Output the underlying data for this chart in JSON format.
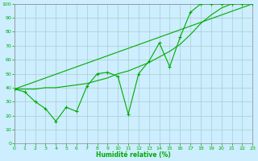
{
  "xlabel": "Humidité relative (%)",
  "background_color": "#cceeff",
  "grid_color": "#aacccc",
  "line_color": "#00aa00",
  "x_ticks": [
    0,
    1,
    2,
    3,
    4,
    5,
    6,
    7,
    8,
    9,
    10,
    11,
    12,
    13,
    14,
    15,
    16,
    17,
    18,
    19,
    20,
    21,
    22,
    23
  ],
  "ylim": [
    0,
    100
  ],
  "xlim": [
    0,
    23
  ],
  "yticks": [
    0,
    10,
    20,
    30,
    40,
    50,
    60,
    70,
    80,
    90,
    100
  ],
  "series1_x": [
    0,
    1,
    2,
    3,
    4,
    5,
    6,
    7,
    8,
    9,
    10,
    11,
    12,
    13,
    14,
    15,
    16,
    17,
    18,
    19,
    20,
    21,
    22,
    23
  ],
  "series1_y": [
    39,
    37,
    30,
    25,
    16,
    26,
    23,
    41,
    50,
    51,
    48,
    21,
    50,
    59,
    72,
    55,
    76,
    94,
    100,
    100,
    100,
    100,
    100,
    100
  ],
  "series2_x": [
    0,
    23
  ],
  "series2_y": [
    39,
    100
  ],
  "series3_x": [
    0,
    1,
    2,
    3,
    4,
    5,
    6,
    7,
    8,
    9,
    10,
    11,
    12,
    13,
    14,
    15,
    16,
    17,
    18,
    19,
    20,
    21,
    22,
    23
  ],
  "series3_y": [
    39,
    39,
    39,
    40,
    40,
    41,
    42,
    43,
    45,
    47,
    50,
    52,
    55,
    58,
    62,
    66,
    71,
    78,
    86,
    92,
    97,
    100,
    100,
    100
  ]
}
